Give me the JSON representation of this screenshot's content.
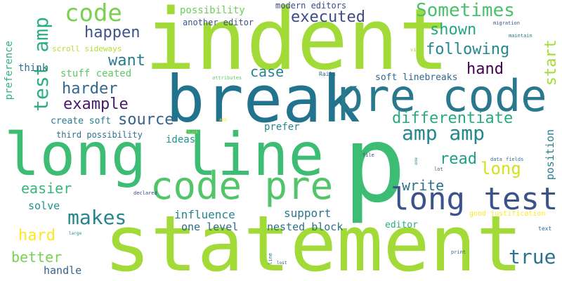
{
  "words": [
    {
      "text": "p",
      "size": 150,
      "weight": 0.95,
      "color": "#3dbc74"
    },
    {
      "text": "indent",
      "size": 120,
      "weight": 0.9,
      "color": "#a2da37"
    },
    {
      "text": "statement",
      "size": 110,
      "weight": 0.88,
      "color": "#a2da37"
    },
    {
      "text": "break",
      "size": 92,
      "weight": 0.82,
      "color": "#22738e"
    },
    {
      "text": "long line",
      "size": 84,
      "weight": 0.8,
      "color": "#3dbc74"
    },
    {
      "text": "pre code",
      "size": 62,
      "weight": 0.74,
      "color": "#2a788e"
    },
    {
      "text": "code pre",
      "size": 54,
      "weight": 0.7,
      "color": "#52c569"
    },
    {
      "text": "long test",
      "size": 44,
      "weight": 0.64,
      "color": "#3b528b"
    },
    {
      "text": "code",
      "size": 34,
      "weight": 0.56,
      "color": "#7ad151"
    },
    {
      "text": "test amp",
      "size": 28,
      "weight": 0.5,
      "color": "#2ab07f"
    },
    {
      "text": "amp amp",
      "size": 28,
      "weight": 0.5,
      "color": "#23888e"
    },
    {
      "text": "makes",
      "size": 28,
      "weight": 0.5,
      "color": "#25858e"
    },
    {
      "text": "Sometimes",
      "size": 26,
      "weight": 0.48,
      "color": "#4ac16d"
    },
    {
      "text": "true",
      "size": 28,
      "weight": 0.48,
      "color": "#2c728e"
    },
    {
      "text": "hard",
      "size": 22,
      "weight": 0.42,
      "color": "#fde725"
    },
    {
      "text": "executed",
      "size": 22,
      "weight": 0.42,
      "color": "#3e4a89"
    },
    {
      "text": "happen",
      "size": 22,
      "weight": 0.42,
      "color": "#3b528b"
    },
    {
      "text": "shown",
      "size": 22,
      "weight": 0.42,
      "color": "#22a884"
    },
    {
      "text": "following",
      "size": 22,
      "weight": 0.42,
      "color": "#23898e"
    },
    {
      "text": "want",
      "size": 22,
      "weight": 0.42,
      "color": "#287c8e"
    },
    {
      "text": "hand",
      "size": 22,
      "weight": 0.42,
      "color": "#440154"
    },
    {
      "text": "start",
      "size": 22,
      "weight": 0.42,
      "color": "#a5db36"
    },
    {
      "text": "harder",
      "size": 22,
      "weight": 0.42,
      "color": "#31688e"
    },
    {
      "text": "example",
      "size": 22,
      "weight": 0.42,
      "color": "#481a6c"
    },
    {
      "text": "differentiate",
      "size": 22,
      "weight": 0.42,
      "color": "#25ab82"
    },
    {
      "text": "source",
      "size": 22,
      "weight": 0.42,
      "color": "#33638d"
    },
    {
      "text": "read",
      "size": 22,
      "weight": 0.42,
      "color": "#1fa088"
    },
    {
      "text": "long",
      "size": 24,
      "weight": 0.44,
      "color": "#d2e21b"
    },
    {
      "text": "easier",
      "size": 20,
      "weight": 0.4,
      "color": "#35b779"
    },
    {
      "text": "write",
      "size": 20,
      "weight": 0.4,
      "color": "#2d708e"
    },
    {
      "text": "better",
      "size": 20,
      "weight": 0.4,
      "color": "#7ad151"
    },
    {
      "text": "case",
      "size": 20,
      "weight": 0.4,
      "color": "#25858e"
    },
    {
      "text": "position",
      "size": 15,
      "weight": 0.34,
      "color": "#277f8e"
    },
    {
      "text": "preference",
      "size": 14,
      "weight": 0.32,
      "color": "#2db27d"
    },
    {
      "text": "possibility",
      "size": 14,
      "weight": 0.32,
      "color": "#6ccd5a"
    },
    {
      "text": "modern editors",
      "size": 12,
      "weight": 0.3,
      "color": "#3e4989"
    },
    {
      "text": "another editor",
      "size": 12,
      "weight": 0.3,
      "color": "#3b528b"
    },
    {
      "text": "scroll sideways",
      "size": 11,
      "weight": 0.3,
      "color": "#b5de2b"
    },
    {
      "text": "think",
      "size": 14,
      "weight": 0.32,
      "color": "#2e6e8e"
    },
    {
      "text": "stuff ceated",
      "size": 14,
      "weight": 0.32,
      "color": "#5ec962"
    },
    {
      "text": "soft linebreaks",
      "size": 13,
      "weight": 0.3,
      "color": "#31688e"
    },
    {
      "text": "create soft",
      "size": 13,
      "weight": 0.3,
      "color": "#287d8e"
    },
    {
      "text": "third possibility",
      "size": 12,
      "weight": 0.3,
      "color": "#2c728e"
    },
    {
      "text": "ideas",
      "size": 14,
      "weight": 0.32,
      "color": "#1f958b"
    },
    {
      "text": "prefer",
      "size": 14,
      "weight": 0.32,
      "color": "#24878e"
    },
    {
      "text": "solve",
      "size": 15,
      "weight": 0.34,
      "color": "#21918c"
    },
    {
      "text": "influence",
      "size": 16,
      "weight": 0.35,
      "color": "#24868e"
    },
    {
      "text": "support",
      "size": 16,
      "weight": 0.35,
      "color": "#2a768e"
    },
    {
      "text": "one level",
      "size": 15,
      "weight": 0.34,
      "color": "#31688e"
    },
    {
      "text": "nested block",
      "size": 15,
      "weight": 0.34,
      "color": "#2c728e"
    },
    {
      "text": "editor",
      "size": 13,
      "weight": 0.3,
      "color": "#29af7f"
    },
    {
      "text": "handle",
      "size": 15,
      "weight": 0.34,
      "color": "#33638d"
    },
    {
      "text": "good justification",
      "size": 10,
      "weight": 0.28,
      "color": "#fde725"
    },
    {
      "text": "migration",
      "size": 7,
      "weight": 0.2,
      "color": "#3b528b"
    },
    {
      "text": "maintain",
      "size": 7,
      "weight": 0.2,
      "color": "#2c728e"
    },
    {
      "text": "view",
      "size": 7,
      "weight": 0.2,
      "color": "#a2da37"
    },
    {
      "text": "Rails",
      "size": 8,
      "weight": 0.2,
      "color": "#31688e"
    },
    {
      "text": "attributes",
      "size": 7,
      "weight": 0.2,
      "color": "#5ec962"
    },
    {
      "text": "app",
      "size": 6,
      "weight": 0.18,
      "color": "#fde725"
    },
    {
      "text": "chunk",
      "size": 6,
      "weight": 0.18,
      "color": "#b5de2b"
    },
    {
      "text": "file",
      "size": 7,
      "weight": 0.2,
      "color": "#3e4a89"
    },
    {
      "text": "one",
      "size": 6,
      "weight": 0.18,
      "color": "#26828e"
    },
    {
      "text": "data",
      "size": 7,
      "weight": 0.2,
      "color": "#31688e"
    },
    {
      "text": "fields",
      "size": 7,
      "weight": 0.2,
      "color": "#2c728e"
    },
    {
      "text": "lot",
      "size": 7,
      "weight": 0.2,
      "color": "#3b528b"
    },
    {
      "text": "declared",
      "size": 7,
      "weight": 0.2,
      "color": "#3e4989"
    },
    {
      "text": "large",
      "size": 6,
      "weight": 0.18,
      "color": "#21918c"
    },
    {
      "text": "line",
      "size": 7,
      "weight": 0.2,
      "color": "#2c728e"
    },
    {
      "text": "lost",
      "size": 6,
      "weight": 0.18,
      "color": "#3b528b"
    },
    {
      "text": "print",
      "size": 7,
      "weight": 0.2,
      "color": "#31688e"
    },
    {
      "text": "text",
      "size": 8,
      "weight": 0.2,
      "color": "#2c728e"
    }
  ]
}
